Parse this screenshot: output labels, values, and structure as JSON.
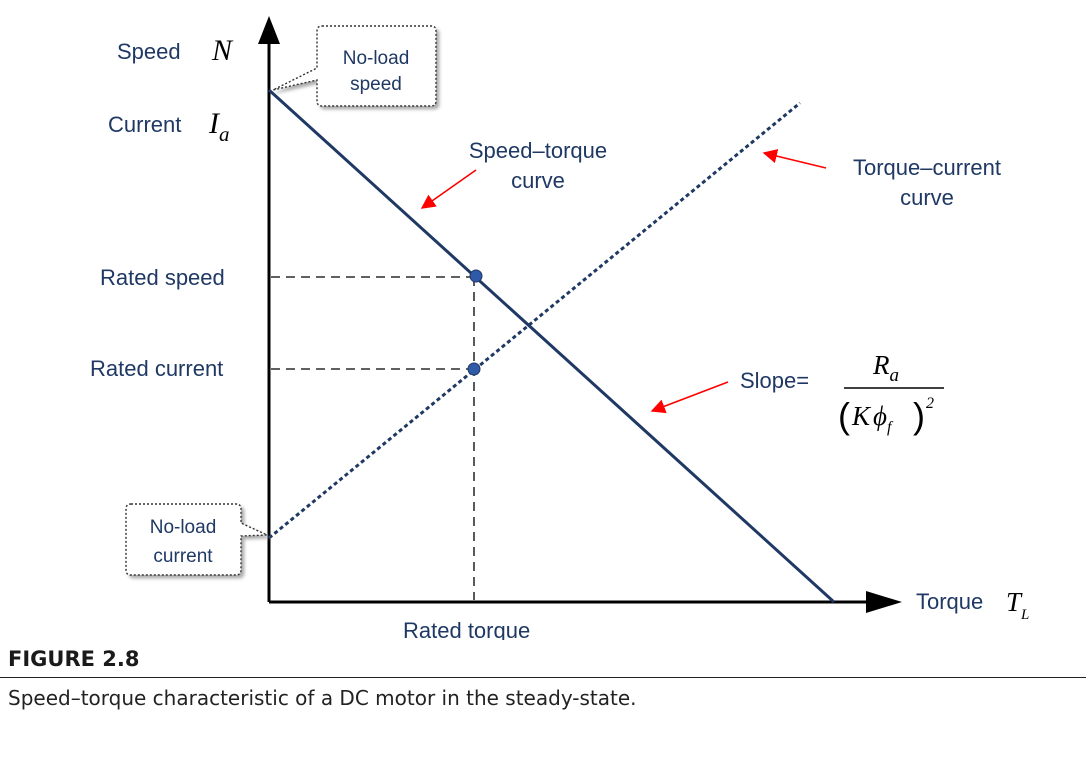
{
  "diagram": {
    "axes": {
      "y_label_speed": "Speed",
      "y_symbol_speed": "N",
      "y_label_current": "Current",
      "y_symbol_current": "I",
      "y_symbol_current_sub": "a",
      "x_label": "Torque",
      "x_symbol": "T",
      "x_symbol_sub": "L"
    },
    "callouts": {
      "no_load_speed": [
        "No-load",
        "speed"
      ],
      "no_load_current": [
        "No-load",
        "current"
      ]
    },
    "curve_labels": {
      "speed_torque": [
        "Speed–torque",
        "curve"
      ],
      "torque_current": [
        "Torque–current",
        "curve"
      ]
    },
    "markers": {
      "rated_speed": "Rated speed",
      "rated_current": "Rated current",
      "rated_torque": "Rated torque"
    },
    "slope": {
      "label": "Slope=",
      "numerator": "R",
      "numerator_sub": "a",
      "denominator_open": "(",
      "denominator_K": "K",
      "denominator_phi": "ϕ",
      "denominator_sub": "f",
      "denominator_close": ")",
      "exponent": "2"
    },
    "colors": {
      "curve": "#1f3864",
      "axis": "#000000",
      "label": "#1f3864",
      "arrow": "#ff0000",
      "marker": "#2e5aa8"
    }
  },
  "caption": {
    "figure_label": "FIGURE 2.8",
    "text": "Speed–torque characteristic of a DC motor in the steady-state."
  }
}
